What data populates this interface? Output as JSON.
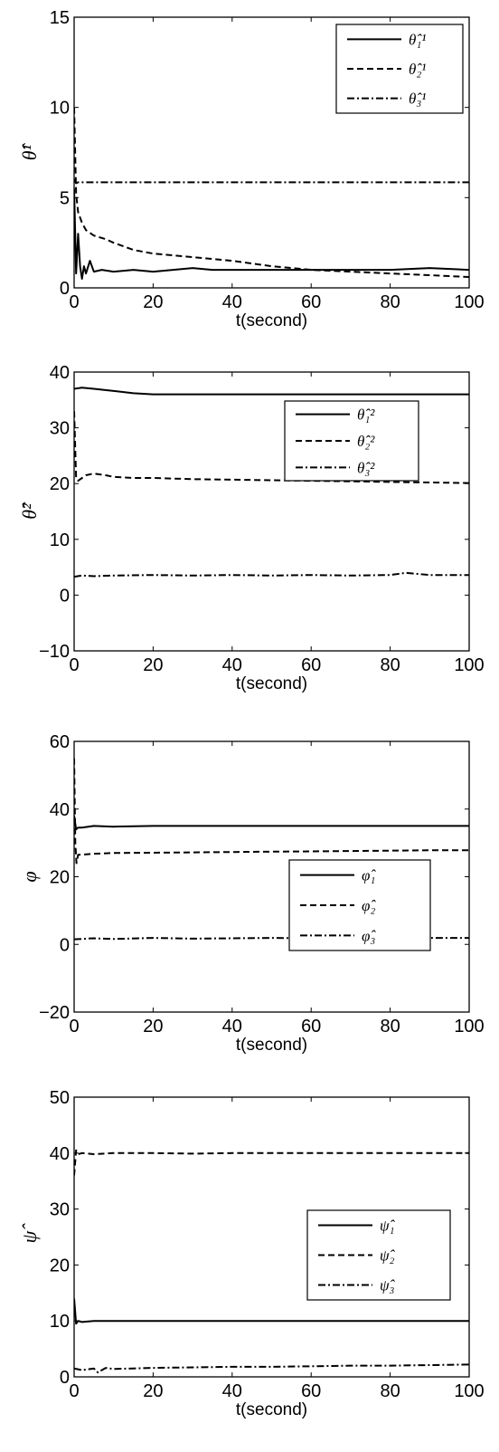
{
  "chart_data": [
    {
      "type": "line",
      "title": "",
      "xlabel": "t(second)",
      "ylabel": "θ̂¹",
      "xlim": [
        0,
        100
      ],
      "ylim": [
        0,
        15
      ],
      "xticks": [
        "0",
        "20",
        "40",
        "60",
        "80",
        "100"
      ],
      "yticks": [
        "0",
        "5",
        "10",
        "15"
      ],
      "grid": false,
      "legend_position": "top-right",
      "series": [
        {
          "name": "θ̂₁¹",
          "style": "solid",
          "x": [
            0,
            0.5,
            1,
            1.5,
            2,
            2.5,
            3,
            4,
            5,
            7,
            10,
            15,
            20,
            25,
            30,
            35,
            40,
            50,
            60,
            70,
            80,
            90,
            100
          ],
          "y": [
            5.5,
            0.8,
            3.0,
            1.2,
            0.5,
            1.2,
            0.8,
            1.5,
            0.9,
            1.0,
            0.9,
            1.0,
            0.9,
            1.0,
            1.1,
            1.0,
            1.0,
            1.0,
            1.0,
            1.0,
            1.0,
            1.1,
            1.0
          ]
        },
        {
          "name": "θ̂₂¹",
          "style": "dashed",
          "x": [
            0,
            0.5,
            1,
            2,
            3,
            5,
            8,
            10,
            15,
            20,
            30,
            40,
            50,
            60,
            70,
            80,
            90,
            100
          ],
          "y": [
            10.0,
            5.2,
            4.2,
            3.6,
            3.2,
            2.9,
            2.7,
            2.5,
            2.1,
            1.9,
            1.7,
            1.5,
            1.2,
            1.0,
            0.9,
            0.8,
            0.7,
            0.6
          ]
        },
        {
          "name": "θ̂₃¹",
          "style": "dashdot",
          "x": [
            0,
            0.5,
            1,
            2,
            5,
            20,
            40,
            60,
            80,
            100
          ],
          "y": [
            6.0,
            5.8,
            5.85,
            5.85,
            5.85,
            5.85,
            5.85,
            5.85,
            5.85,
            5.85
          ]
        }
      ]
    },
    {
      "type": "line",
      "title": "",
      "xlabel": "t(second)",
      "ylabel": "θ̂²",
      "xlim": [
        0,
        100
      ],
      "ylim": [
        -10,
        40
      ],
      "xticks": [
        "0",
        "20",
        "40",
        "60",
        "80",
        "100"
      ],
      "yticks": [
        "−10",
        "0",
        "10",
        "20",
        "30",
        "40"
      ],
      "grid": false,
      "legend_position": "top-right",
      "series": [
        {
          "name": "θ̂₁²",
          "style": "solid",
          "x": [
            0,
            2,
            5,
            10,
            15,
            20,
            30,
            40,
            60,
            80,
            100
          ],
          "y": [
            37.0,
            37.2,
            37.0,
            36.6,
            36.2,
            36.0,
            36.0,
            36.0,
            36.0,
            36.0,
            36.0
          ]
        },
        {
          "name": "θ̂₂²",
          "style": "dashed",
          "x": [
            0,
            0.5,
            1,
            3,
            5,
            8,
            10,
            15,
            20,
            30,
            40,
            50,
            60,
            70,
            80,
            90,
            100
          ],
          "y": [
            33.0,
            21.0,
            20.5,
            21.5,
            21.8,
            21.5,
            21.2,
            21.0,
            21.0,
            20.8,
            20.7,
            20.6,
            20.5,
            20.4,
            20.3,
            20.2,
            20.1
          ]
        },
        {
          "name": "θ̂₃²",
          "style": "dashdot",
          "x": [
            0,
            2,
            5,
            10,
            20,
            30,
            40,
            50,
            60,
            70,
            80,
            84,
            90,
            100
          ],
          "y": [
            3.3,
            3.5,
            3.4,
            3.5,
            3.6,
            3.5,
            3.6,
            3.5,
            3.6,
            3.5,
            3.6,
            4.0,
            3.6,
            3.6
          ]
        }
      ]
    },
    {
      "type": "line",
      "title": "",
      "xlabel": "t(second)",
      "ylabel": "φ",
      "xlim": [
        0,
        100
      ],
      "ylim": [
        -20,
        60
      ],
      "xticks": [
        "0",
        "20",
        "40",
        "60",
        "80",
        "100"
      ],
      "yticks": [
        "−20",
        "0",
        "20",
        "40",
        "60"
      ],
      "grid": false,
      "legend_position": "center-right",
      "series": [
        {
          "name": "φ̂₁",
          "style": "solid",
          "x": [
            0,
            0.5,
            1,
            2,
            5,
            10,
            20,
            40,
            60,
            80,
            100
          ],
          "y": [
            38.0,
            34.0,
            34.5,
            34.5,
            35.0,
            34.8,
            35.0,
            35.0,
            35.0,
            35.0,
            35.0
          ]
        },
        {
          "name": "φ̂₂",
          "style": "dashed",
          "x": [
            0,
            0.3,
            0.6,
            1,
            2,
            5,
            10,
            20,
            30,
            40,
            50,
            60,
            70,
            80,
            90,
            100
          ],
          "y": [
            55.0,
            30.0,
            24.0,
            26.5,
            26.5,
            26.8,
            27.0,
            27.1,
            27.2,
            27.3,
            27.4,
            27.5,
            27.6,
            27.7,
            27.8,
            27.8
          ]
        },
        {
          "name": "φ̂₃",
          "style": "dashdot",
          "x": [
            0,
            5,
            10,
            20,
            30,
            40,
            50,
            60,
            70,
            80,
            90,
            100
          ],
          "y": [
            1.5,
            1.8,
            1.6,
            1.9,
            1.7,
            1.8,
            1.9,
            1.8,
            1.9,
            1.8,
            1.9,
            1.9
          ]
        }
      ]
    },
    {
      "type": "line",
      "title": "",
      "xlabel": "t(second)",
      "ylabel": "ψ̂",
      "xlim": [
        0,
        100
      ],
      "ylim": [
        0,
        50
      ],
      "xticks": [
        "0",
        "20",
        "40",
        "60",
        "80",
        "100"
      ],
      "yticks": [
        "0",
        "10",
        "20",
        "30",
        "40",
        "50"
      ],
      "grid": false,
      "legend_position": "center-right",
      "series": [
        {
          "name": "ψ̂₁",
          "style": "solid",
          "x": [
            0,
            0.5,
            1,
            2,
            5,
            10,
            20,
            40,
            60,
            80,
            100
          ],
          "y": [
            14.0,
            9.5,
            10.0,
            9.8,
            10.0,
            10.0,
            10.0,
            10.0,
            10.0,
            10.0,
            10.0
          ]
        },
        {
          "name": "ψ̂₂",
          "style": "dashed",
          "x": [
            0,
            0.5,
            1,
            2,
            5,
            10,
            20,
            30,
            40,
            50,
            60,
            70,
            80,
            90,
            100
          ],
          "y": [
            36.0,
            40.5,
            39.8,
            40.0,
            39.8,
            40.0,
            40.0,
            39.9,
            40.0,
            40.0,
            40.0,
            40.0,
            40.0,
            40.0,
            40.0
          ]
        },
        {
          "name": "ψ̂₃",
          "style": "dashdot",
          "x": [
            0,
            2,
            5,
            6,
            8,
            10,
            20,
            30,
            40,
            50,
            60,
            70,
            80,
            90,
            100
          ],
          "y": [
            1.5,
            1.2,
            1.5,
            0.8,
            1.6,
            1.4,
            1.6,
            1.7,
            1.8,
            1.8,
            1.9,
            2.0,
            2.0,
            2.1,
            2.2
          ]
        }
      ]
    }
  ]
}
